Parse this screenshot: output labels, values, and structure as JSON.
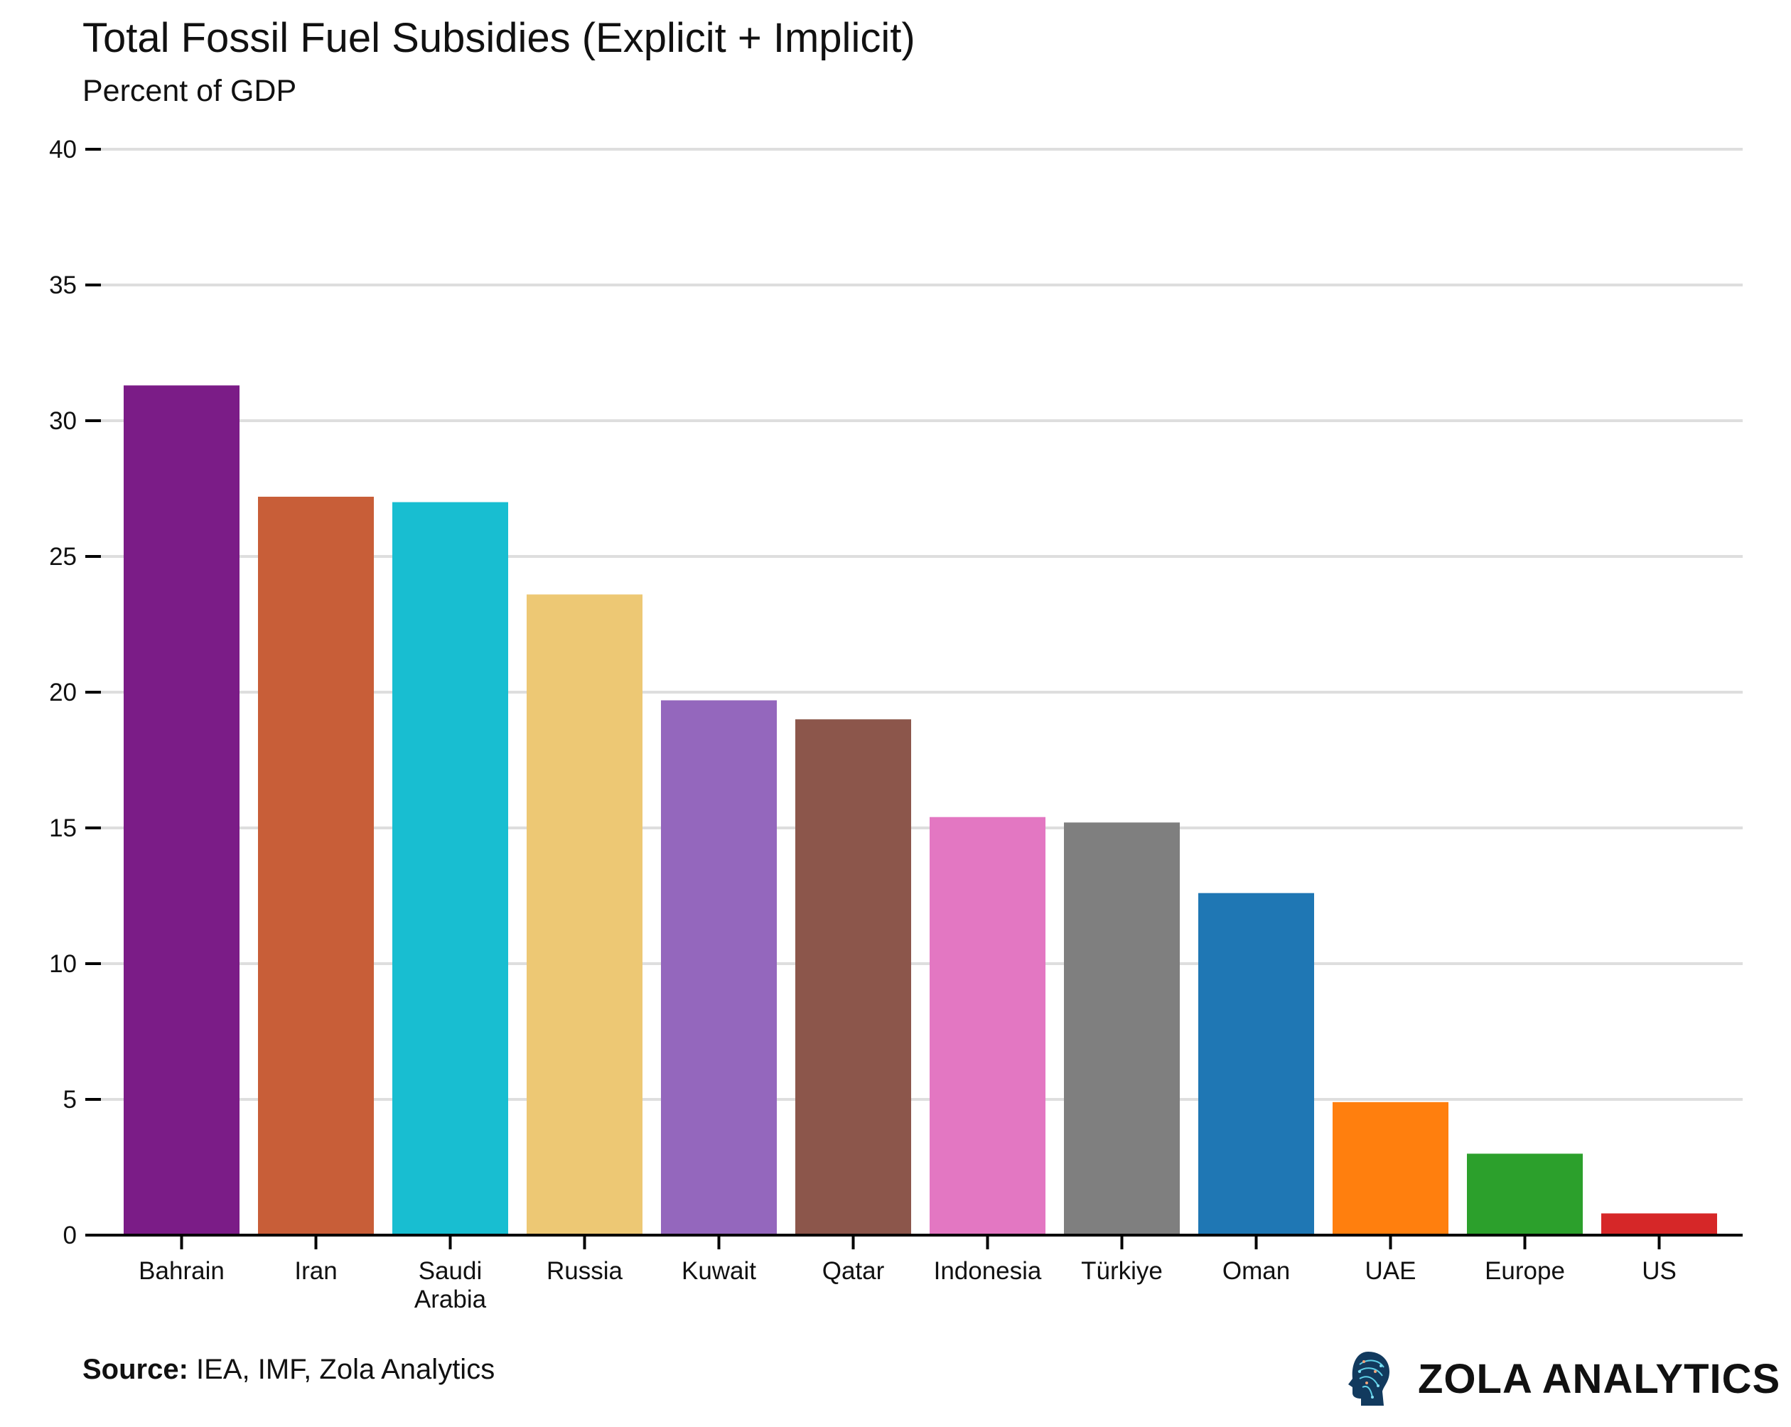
{
  "chart_data": {
    "type": "bar",
    "title": "Total Fossil Fuel Subsidies (Explicit + Implicit)",
    "subtitle": "Percent of GDP",
    "xlabel": "",
    "ylabel": "",
    "ylim": [
      0,
      40
    ],
    "yticks": [
      0,
      5,
      10,
      15,
      20,
      25,
      30,
      35,
      40
    ],
    "grid": true,
    "categories": [
      "Bahrain",
      "Iran",
      "Saudi Arabia",
      "Russia",
      "Kuwait",
      "Qatar",
      "Indonesia",
      "Türkiye",
      "Oman",
      "UAE",
      "Europe",
      "US"
    ],
    "values": [
      31.3,
      27.2,
      27.0,
      23.6,
      19.7,
      19.0,
      15.4,
      15.2,
      12.6,
      4.9,
      3.0,
      0.8
    ],
    "colors": [
      "#7b1c87",
      "#c85e38",
      "#18bed1",
      "#edc874",
      "#9467bd",
      "#8c564b",
      "#e377c2",
      "#7f7f7f",
      "#1f77b4",
      "#ff7f0e",
      "#2ca02c",
      "#d62728"
    ]
  },
  "footer": {
    "source_label": "Source:",
    "source_text": " IEA, IMF, Zola Analytics",
    "brand": "ZOLA ANALYTICS",
    "brand_icon": "head-circuit-icon"
  }
}
